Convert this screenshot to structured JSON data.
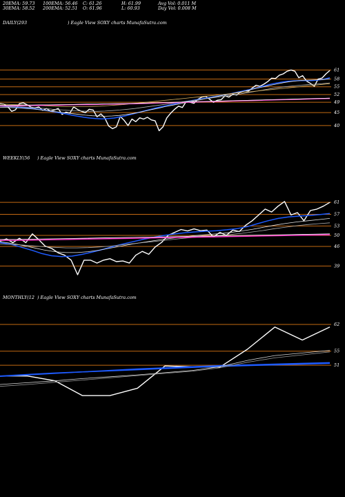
{
  "header": {
    "ema20": "20EMA: 59.73",
    "ema100": "100EMA: 56.46",
    "close": "C: 61.26",
    "high": "H: 61.99",
    "avg_vol": "Avg Vol: 0.011 M",
    "ema30": "30EMA: 58.52",
    "ema200": "200EMA: 52.51",
    "open": "O: 61.96",
    "low": "L: 60.93",
    "day_vol": "Day Vol: 0.008 M"
  },
  "colors": {
    "background": "#000000",
    "price": "#ffffff",
    "ema_blue": "#1e5bff",
    "ema_pink": "#ff33cc",
    "level_line": "#c46a12"
  },
  "chart_data": [
    {
      "type": "line",
      "title": "DAILY(293",
      "subtitle": ") Eagle  View  SOXY charts MunafaSutra.com",
      "x_label": "",
      "y_label": "",
      "y_tick_labels": [
        "61",
        "58",
        "55",
        "52",
        "49",
        "45",
        "40"
      ],
      "ylim": [
        36.5,
        64
      ],
      "horizontal_levels": [
        61.5,
        58,
        55,
        52,
        49,
        45,
        40
      ],
      "series": [
        {
          "role": "price",
          "color": "#ffffff",
          "y": [
            48.5,
            48.3,
            47.3,
            45.5,
            46.1,
            48.5,
            48.8,
            48.0,
            47.1,
            46.8,
            47.2,
            45.9,
            46.6,
            45.6,
            46.0,
            46.6,
            44.3,
            45.2,
            44.8,
            47.2,
            46.2,
            45.5,
            45.0,
            46.3,
            46.0,
            43.4,
            44.5,
            43.0,
            39.8,
            38.8,
            39.5,
            43.5,
            42.0,
            40.0,
            42.5,
            41.5,
            43.0,
            42.5,
            43.2,
            42.2,
            41.8,
            38.0,
            39.5,
            43.0,
            44.8,
            46.3,
            47.5,
            47.0,
            49.3,
            49.0,
            48.6,
            50.2,
            51.0,
            51.3,
            50.2,
            49.0,
            49.8,
            50.0,
            51.5,
            51.0,
            52.1,
            51.8,
            53.0,
            53.5,
            53.3,
            54.5,
            55.6,
            55.2,
            56.0,
            57.0,
            58.3,
            58.2,
            59.5,
            60.0,
            61.0,
            61.5,
            61.0,
            58.5,
            59.3,
            57.2,
            56.3,
            55.2,
            58.0,
            58.4,
            60.0,
            61.3
          ]
        },
        {
          "role": "ema",
          "color": "#1e5bff",
          "y": [
            47.5,
            47.4,
            47.3,
            47.1,
            46.9,
            46.7,
            46.4,
            46.1,
            45.7,
            45.3,
            44.9,
            44.5,
            44.0,
            43.6,
            43.2,
            42.9,
            42.7,
            42.6,
            42.7,
            42.9,
            43.3,
            43.8,
            44.4,
            45.0,
            45.6,
            46.2,
            46.8,
            47.3,
            47.8,
            48.3,
            48.8,
            49.3,
            49.7,
            50.1,
            50.5,
            50.9,
            51.3,
            51.7,
            52.1,
            52.6,
            53.1,
            53.6,
            54.1,
            54.7,
            55.3,
            55.9,
            56.4,
            56.8,
            57.1,
            57.3,
            57.4,
            57.4,
            57.4,
            57.6,
            57.9,
            58.5
          ]
        },
        {
          "role": "ema",
          "color": "#e8e8e8",
          "y": [
            47.0,
            47.0,
            46.9,
            46.8,
            46.6,
            46.4,
            46.1,
            45.8,
            45.5,
            45.2,
            44.9,
            44.6,
            44.3,
            44.0,
            43.8,
            43.7,
            43.6,
            43.7,
            43.9,
            44.2,
            44.6,
            45.1,
            45.6,
            46.2,
            46.7,
            47.3,
            47.8,
            48.3,
            48.8,
            49.3,
            49.8,
            50.3,
            50.8,
            51.3,
            51.8,
            52.3,
            52.8,
            53.3,
            53.9,
            54.5,
            55.0,
            55.6,
            56.1,
            56.6,
            57.0,
            57.3,
            57.5,
            57.6,
            57.7,
            57.8,
            58.0
          ]
        },
        {
          "role": "ema",
          "color": "#b0b0b0",
          "y": [
            47.5,
            47.4,
            47.3,
            47.2,
            47.0,
            46.8,
            46.6,
            46.3,
            46.1,
            45.9,
            45.7,
            45.6,
            45.5,
            45.5,
            45.6,
            45.8,
            46.0,
            46.3,
            46.6,
            47.0,
            47.4,
            47.8,
            48.2,
            48.6,
            49.0,
            49.4,
            49.8,
            50.2,
            50.6,
            51.0,
            51.4,
            51.8,
            52.2,
            52.7,
            53.2,
            53.7,
            54.2,
            54.6,
            55.0,
            55.3,
            55.6,
            55.8,
            56.0,
            56.2,
            56.5
          ]
        },
        {
          "role": "ema",
          "color": "#d8b060",
          "y": [
            48.3,
            48.2,
            48.1,
            48.0,
            47.9,
            47.8,
            47.6,
            47.5,
            47.4,
            47.3,
            47.3,
            47.3,
            47.4,
            47.5,
            47.7,
            47.9,
            48.1,
            48.4,
            48.7,
            49.0,
            49.3,
            49.6,
            49.9,
            50.2,
            50.5,
            50.8,
            51.1,
            51.4,
            51.7,
            52.0,
            52.3,
            52.6,
            52.9,
            53.2,
            53.5,
            53.8,
            54.1,
            54.4,
            54.7,
            55.0,
            55.3,
            55.6,
            55.9,
            56.2
          ]
        },
        {
          "role": "ema",
          "color": "#ff33cc",
          "y": [
            47.6,
            47.7,
            47.7,
            47.8,
            47.8,
            47.9,
            47.9,
            48.0,
            48.1,
            48.1,
            48.2,
            48.3,
            48.3,
            48.4,
            48.5,
            48.6,
            48.7,
            48.8,
            48.9,
            49.0,
            49.1,
            49.2,
            49.3,
            49.4,
            49.5,
            49.6,
            49.7,
            49.8,
            49.9,
            50.0,
            50.1,
            50.2,
            50.3,
            50.4,
            50.5
          ]
        },
        {
          "role": "ema",
          "color": "#ffffff",
          "y": [
            47.8,
            47.8,
            47.9,
            47.9,
            48.0,
            48.0,
            48.1,
            48.1,
            48.2,
            48.3,
            48.3,
            48.4,
            48.5,
            48.5,
            48.6,
            48.7,
            48.8,
            48.9,
            49.0,
            49.1,
            49.2,
            49.3,
            49.4,
            49.5,
            49.6,
            49.7,
            49.8,
            49.9,
            50.0,
            50.1,
            50.2,
            50.3,
            50.4,
            50.5,
            50.6
          ]
        }
      ]
    },
    {
      "type": "line",
      "title": "WEEKLY(56",
      "subtitle": ") Eagle  View  SOXY charts MunafaSutra.com",
      "x_label": "",
      "y_label": "",
      "y_tick_labels": [
        "61",
        "57",
        "53",
        "50",
        "46",
        "39"
      ],
      "ylim": [
        36.5,
        63
      ],
      "horizontal_levels": [
        61.3,
        57.2,
        53.2,
        50.0,
        46.2,
        39.5
      ],
      "series": [
        {
          "role": "price",
          "color": "#ffffff",
          "y": [
            48.0,
            48.8,
            47.5,
            49.0,
            47.5,
            50.5,
            48.5,
            46.3,
            45.5,
            44.0,
            43.2,
            41.5,
            36.5,
            41.5,
            41.5,
            40.5,
            41.5,
            42.0,
            41.0,
            41.2,
            40.5,
            43.2,
            44.5,
            43.5,
            46.0,
            47.6,
            50.0,
            51.0,
            52.0,
            51.5,
            52.2,
            51.6,
            51.8,
            49.5,
            51.0,
            50.0,
            51.8,
            51.3,
            53.5,
            55.0,
            57.0,
            59.0,
            58.0,
            60.0,
            61.6,
            57.0,
            57.8,
            55.0,
            58.5,
            59.0,
            60.0,
            61.3
          ]
        },
        {
          "role": "ema",
          "color": "#1e5bff",
          "y": [
            47.5,
            47.0,
            46.0,
            45.0,
            43.8,
            43.0,
            42.7,
            42.9,
            43.5,
            44.3,
            45.2,
            46.2,
            47.1,
            47.9,
            48.7,
            49.4,
            50.0,
            50.5,
            50.9,
            51.2,
            51.4,
            51.6,
            51.9,
            52.3,
            53.0,
            54.0,
            55.0,
            55.8,
            56.3,
            56.6,
            56.8,
            57.1,
            57.5
          ]
        },
        {
          "role": "ema",
          "color": "#e8e8e8",
          "y": [
            47.8,
            47.3,
            46.6,
            45.8,
            45.0,
            44.4,
            44.1,
            44.1,
            44.4,
            44.9,
            45.6,
            46.3,
            47.0,
            47.6,
            48.2,
            48.7,
            49.2,
            49.6,
            50.0,
            50.3,
            50.6,
            51.0,
            51.5,
            52.1,
            52.8,
            53.5,
            54.1,
            54.6,
            55.0,
            55.4,
            55.8
          ]
        },
        {
          "role": "ema",
          "color": "#b0b0b0",
          "y": [
            47.0,
            46.9,
            46.7,
            46.4,
            46.1,
            45.9,
            45.7,
            45.7,
            45.8,
            46.0,
            46.3,
            46.7,
            47.1,
            47.5,
            47.9,
            48.3,
            48.7,
            49.1,
            49.4,
            49.7,
            50.0,
            50.3,
            50.7,
            51.2,
            51.7,
            52.3,
            52.8,
            53.3,
            53.7,
            54.0,
            54.3
          ]
        },
        {
          "role": "ema",
          "color": "#ff33cc",
          "y": [
            48.3,
            48.3,
            48.4,
            48.5,
            48.6,
            48.7,
            48.8,
            48.9,
            49.0,
            49.1,
            49.2,
            49.3,
            49.4,
            49.5,
            49.6,
            49.7,
            49.8,
            49.9,
            50.0,
            50.1,
            50.2
          ]
        },
        {
          "role": "ema",
          "color": "#ffffff",
          "y": [
            48.6,
            48.6,
            48.7,
            48.8,
            48.9,
            49.0,
            49.1,
            49.2,
            49.3,
            49.4,
            49.5,
            49.6,
            49.7,
            49.8,
            49.9,
            50.0,
            50.1,
            50.2,
            50.3,
            50.4,
            50.5
          ]
        }
      ]
    },
    {
      "type": "line",
      "title": "MONTHLY(12",
      "subtitle": ") Eagle  View  SOXY charts MunafaSutra.com",
      "x_label": "",
      "y_label": "",
      "y_tick_labels": [
        "62",
        "55",
        "51"
      ],
      "ylim": [
        38,
        65
      ],
      "horizontal_levels": [
        62.2,
        55.0,
        51.2
      ],
      "series": [
        {
          "role": "price",
          "color": "#ffffff",
          "y": [
            48.3,
            48.3,
            47.0,
            43.0,
            43.0,
            45.0,
            51.0,
            50.8,
            50.7,
            55.5,
            61.5,
            58.0,
            61.5
          ]
        },
        {
          "role": "ema",
          "color": "#1e5bff",
          "y": [
            48.2,
            48.6,
            49.0,
            49.4,
            49.8,
            50.2,
            50.5,
            50.8,
            51.1,
            51.3,
            51.5,
            51.7,
            51.9
          ]
        },
        {
          "role": "ema",
          "color": "#1e5bff",
          "y": [
            48.3,
            48.7,
            49.1,
            49.4,
            49.7,
            50.0,
            50.3,
            50.6,
            50.9,
            51.1,
            51.3,
            51.5,
            51.7
          ]
        },
        {
          "role": "ema",
          "color": "#d8d8d8",
          "y": [
            46.0,
            46.5,
            47.0,
            47.6,
            48.1,
            48.6,
            49.2,
            49.8,
            50.8,
            52.5,
            53.8,
            54.5,
            55.2
          ]
        },
        {
          "role": "ema",
          "color": "#9a9a9a",
          "y": [
            45.5,
            46.0,
            46.6,
            47.2,
            47.8,
            48.4,
            49.0,
            49.6,
            50.5,
            52.0,
            53.2,
            54.0,
            54.8
          ]
        }
      ]
    }
  ]
}
